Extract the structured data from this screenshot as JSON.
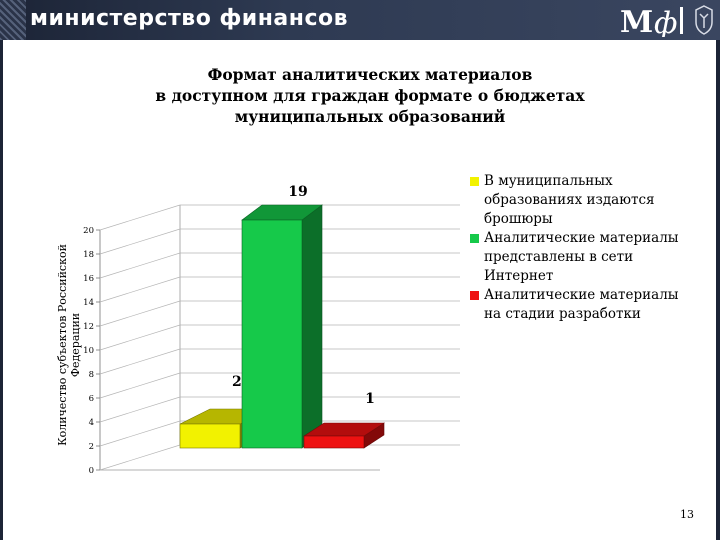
{
  "header": {
    "brand": "министерство финансов",
    "logo_icon": "minfin-logo-icon",
    "emblem_icon": "state-emblem-icon"
  },
  "title_lines": [
    "Формат аналитических материалов",
    "в доступном для граждан формате о бюджетах",
    "муниципальных образований"
  ],
  "page_number": "13",
  "chart_data": {
    "type": "bar",
    "style": "3d",
    "title": "Формат аналитических материалов в доступном для граждан формате о бюджетах муниципальных образований",
    "ylabel": "Количество субъектов Российской Федерации",
    "ylim": [
      0,
      20
    ],
    "yticks": [
      0,
      2,
      4,
      6,
      8,
      10,
      12,
      14,
      16,
      18,
      20
    ],
    "grid": true,
    "legend_position": "right",
    "series": [
      {
        "name": "В муниципальных образованиях издаются брошюры",
        "value": 2,
        "label": "2",
        "color": "#f2f200"
      },
      {
        "name": "Аналитические материалы представлены в сети Интернет",
        "value": 19,
        "label": "19",
        "color": "#16c94a"
      },
      {
        "name": "Аналитические материалы на стадии разработки",
        "value": 1,
        "label": "1",
        "color": "#ee1111"
      }
    ]
  }
}
